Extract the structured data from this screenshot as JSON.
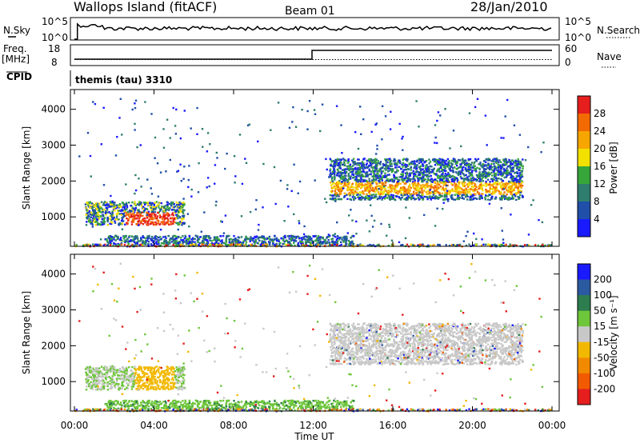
{
  "header": {
    "station": "Wallops Island (fitACF)",
    "beam": "Beam 01",
    "date": "28/Jan/2010"
  },
  "top_panels": {
    "nsky_label": "N.Sky",
    "nsky_ticks": [
      "10^5",
      "10^0"
    ],
    "nsearch_label": "N.Search",
    "nsearch_ticks": [
      "10^5",
      "10^0"
    ],
    "freq_label": "Freq.",
    "freq_unit": "[MHz]",
    "freq_ticks": [
      "18",
      "8"
    ],
    "nave_label": "Nave",
    "nave_ticks": [
      "60",
      "0"
    ],
    "cpid_label": "CPID",
    "cpid_value": "themis (tau) 3310"
  },
  "chart_data": [
    {
      "type": "heatmap",
      "name": "power",
      "ylabel": "Slant Range [km]",
      "xlabel": "",
      "x_range_hours": [
        0,
        24
      ],
      "ylim": [
        180,
        4550
      ],
      "yticks": [
        "1000",
        "2000",
        "3000",
        "4000"
      ],
      "colorbar_label": "Power [dB]",
      "colorbar_ticks": [
        "4",
        "8",
        "12",
        "16",
        "20",
        "24",
        "28"
      ],
      "colorbar_colors": [
        "#1a1aff",
        "#1f4fa8",
        "#2e7d6f",
        "#36a63a",
        "#f2e000",
        "#f7a600",
        "#f26a00",
        "#e61e1e"
      ],
      "regions": [
        {
          "t": [
            0.5,
            5.5
          ],
          "range_km": [
            800,
            1450
          ],
          "level": "high"
        },
        {
          "t": [
            12.8,
            22.5
          ],
          "range_km": [
            1500,
            2650
          ],
          "level": "medium"
        },
        {
          "t": [
            1.5,
            14.0
          ],
          "range_km": [
            250,
            500
          ],
          "level": "low"
        }
      ]
    },
    {
      "type": "heatmap",
      "name": "velocity",
      "ylabel": "Slant Range [km]",
      "xlabel": "Time UT",
      "x_range_hours": [
        0,
        24
      ],
      "ylim": [
        180,
        4550
      ],
      "yticks": [
        "1000",
        "2000",
        "3000",
        "4000"
      ],
      "xticks": [
        "00:00",
        "04:00",
        "08:00",
        "12:00",
        "16:00",
        "20:00",
        "00:00"
      ],
      "colorbar_label": "Velocity [m s⁻¹]",
      "colorbar_ticks": [
        "200",
        "100",
        "50",
        "15",
        "-15",
        "-50",
        "-100",
        "-200"
      ],
      "colorbar_colors": [
        "#1a1aff",
        "#2c5aa0",
        "#2e7d4f",
        "#6ec63a",
        "#c8c8c8",
        "#f2b800",
        "#f28a00",
        "#f25a00",
        "#e61e1e"
      ],
      "regions": [
        {
          "t": [
            0.5,
            5.5
          ],
          "range_km": [
            800,
            1450
          ],
          "level": "mixed green/grey/orange"
        },
        {
          "t": [
            12.8,
            22.5
          ],
          "range_km": [
            1500,
            2650
          ],
          "level": "grey (ground scatter)"
        },
        {
          "t": [
            1.5,
            14.0
          ],
          "range_km": [
            250,
            500
          ],
          "level": "green"
        }
      ]
    }
  ]
}
